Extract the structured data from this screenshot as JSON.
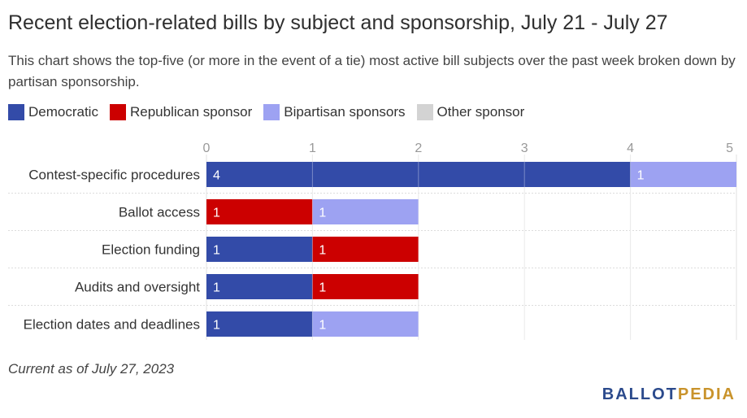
{
  "header": {
    "title": "Recent election-related bills by subject and sponsorship, July 21 - July 27",
    "subtitle": "This chart shows the top-five (or more in the event of a tie) most active bill subjects over the past week broken down by partisan sponsorship."
  },
  "legend": [
    {
      "label": "Democratic",
      "color": "#334ba8"
    },
    {
      "label": "Republican sponsor",
      "color": "#cc0000"
    },
    {
      "label": "Bipartisan sponsors",
      "color": "#9da2f2"
    },
    {
      "label": "Other sponsor",
      "color": "#d3d3d3"
    }
  ],
  "chart_data": {
    "type": "bar",
    "orientation": "horizontal",
    "stacked": true,
    "categories": [
      "Contest-specific procedures",
      "Ballot access",
      "Election funding",
      "Audits and oversight",
      "Election dates and deadlines"
    ],
    "series": [
      {
        "name": "Democratic",
        "color": "#334ba8",
        "values": [
          4,
          0,
          1,
          1,
          1
        ]
      },
      {
        "name": "Republican sponsor",
        "color": "#cc0000",
        "values": [
          0,
          1,
          1,
          1,
          0
        ]
      },
      {
        "name": "Bipartisan sponsors",
        "color": "#9da2f2",
        "values": [
          1,
          1,
          0,
          0,
          1
        ]
      },
      {
        "name": "Other sponsor",
        "color": "#d3d3d3",
        "values": [
          0,
          0,
          0,
          0,
          0
        ]
      }
    ],
    "xlim": [
      0,
      5
    ],
    "ticks": [
      0,
      1,
      2,
      3,
      4,
      5
    ],
    "grid": true,
    "legend_position": "top-left"
  },
  "footer": {
    "note": "Current as of July 27, 2023",
    "logo_part1": "BALLOT",
    "logo_part2": "PEDIA"
  }
}
